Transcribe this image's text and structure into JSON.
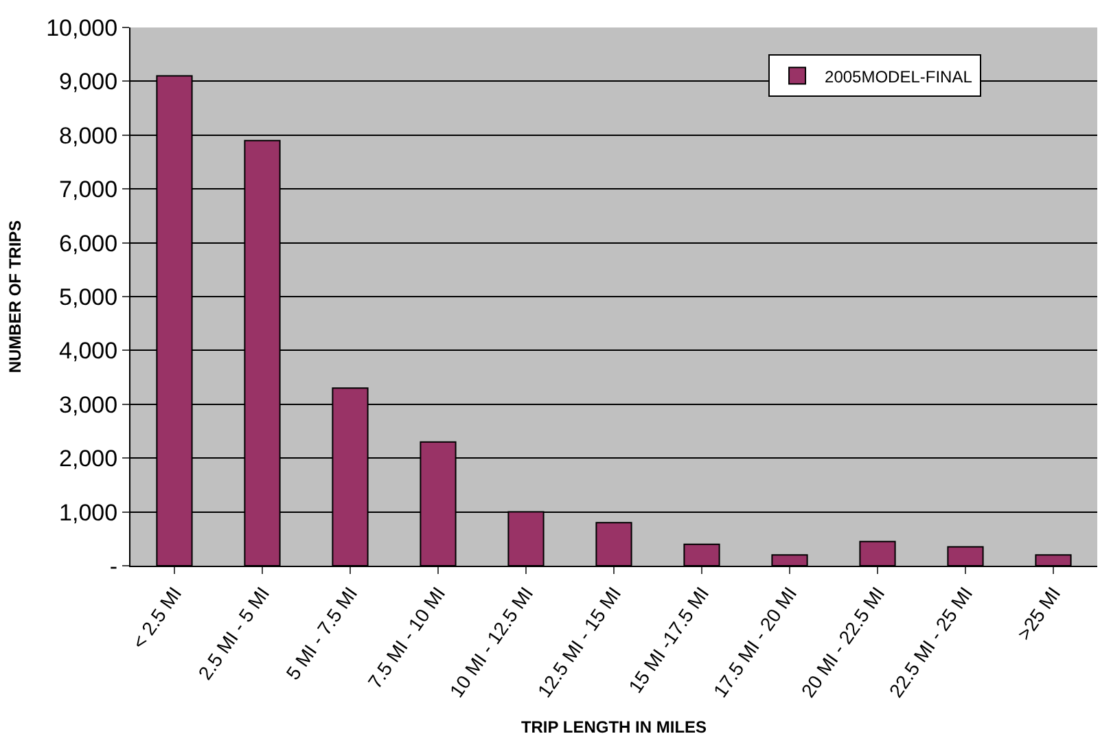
{
  "chart_data": {
    "type": "bar",
    "xlabel": "TRIP LENGTH IN MILES",
    "ylabel": "NUMBER OF TRIPS",
    "categories": [
      "< 2.5 MI",
      "2.5 MI - 5 MI",
      "5 MI - 7.5 MI",
      "7.5 MI - 10 MI",
      "10 MI - 12.5 MI",
      "12.5 MI - 15 MI",
      "15 MI -17.5 MI",
      "17.5 MI - 20 MI",
      "20 MI - 22.5 MI",
      "22.5 MI - 25 MI",
      ">25 MI"
    ],
    "series": [
      {
        "name": "2005MODEL-FINAL",
        "color": "#993366",
        "values": [
          9100,
          7900,
          3300,
          2300,
          1000,
          800,
          400,
          200,
          450,
          350,
          200
        ]
      }
    ],
    "ylim": [
      0,
      10000
    ],
    "yticks": [
      {
        "value": 0,
        "label": "-"
      },
      {
        "value": 1000,
        "label": "1,000"
      },
      {
        "value": 2000,
        "label": "2,000"
      },
      {
        "value": 3000,
        "label": "3,000"
      },
      {
        "value": 4000,
        "label": "4,000"
      },
      {
        "value": 5000,
        "label": "5,000"
      },
      {
        "value": 6000,
        "label": "6,000"
      },
      {
        "value": 7000,
        "label": "7,000"
      },
      {
        "value": 8000,
        "label": "8,000"
      },
      {
        "value": 9000,
        "label": "9,000"
      },
      {
        "value": 10000,
        "label": "10,000"
      }
    ],
    "grid": "y",
    "legend": "top right"
  }
}
